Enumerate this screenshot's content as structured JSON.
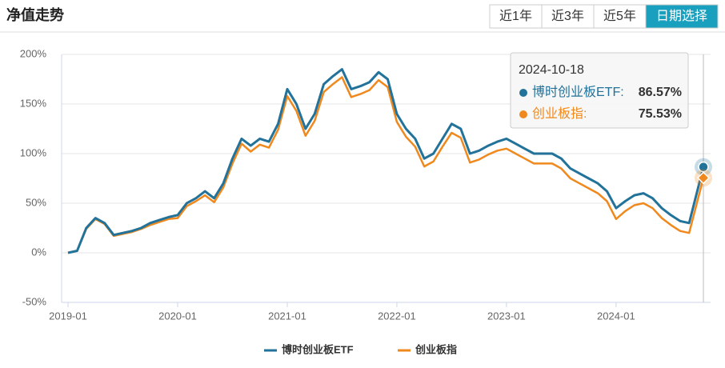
{
  "header": {
    "title": "净值走势",
    "buttons": [
      "近1年",
      "近3年",
      "近5年",
      "日期选择"
    ],
    "active": 3
  },
  "chart_data": {
    "type": "line",
    "x": [
      "2019-01",
      "2019-02",
      "2019-03",
      "2019-04",
      "2019-05",
      "2019-06",
      "2019-07",
      "2019-08",
      "2019-09",
      "2019-10",
      "2019-11",
      "2019-12",
      "2020-01",
      "2020-02",
      "2020-03",
      "2020-04",
      "2020-05",
      "2020-06",
      "2020-07",
      "2020-08",
      "2020-09",
      "2020-10",
      "2020-11",
      "2020-12",
      "2021-01",
      "2021-02",
      "2021-03",
      "2021-04",
      "2021-05",
      "2021-06",
      "2021-07",
      "2021-08",
      "2021-09",
      "2021-10",
      "2021-11",
      "2021-12",
      "2022-01",
      "2022-02",
      "2022-03",
      "2022-04",
      "2022-05",
      "2022-06",
      "2022-07",
      "2022-08",
      "2022-09",
      "2022-10",
      "2022-11",
      "2022-12",
      "2023-01",
      "2023-02",
      "2023-03",
      "2023-04",
      "2023-05",
      "2023-06",
      "2023-07",
      "2023-08",
      "2023-09",
      "2023-10",
      "2023-11",
      "2023-12",
      "2024-01",
      "2024-02",
      "2024-03",
      "2024-04",
      "2024-05",
      "2024-06",
      "2024-07",
      "2024-08",
      "2024-09",
      "2024-10-18"
    ],
    "series": [
      {
        "name": "博时创业板ETF",
        "color": "#22729a",
        "values": [
          0,
          2,
          25,
          35,
          30,
          18,
          20,
          22,
          25,
          30,
          33,
          36,
          38,
          50,
          55,
          62,
          55,
          70,
          95,
          115,
          108,
          115,
          112,
          130,
          165,
          150,
          125,
          140,
          170,
          178,
          185,
          165,
          168,
          172,
          182,
          175,
          140,
          125,
          115,
          95,
          100,
          115,
          130,
          125,
          100,
          103,
          108,
          112,
          115,
          110,
          105,
          100,
          100,
          100,
          95,
          85,
          80,
          75,
          70,
          62,
          45,
          52,
          58,
          60,
          55,
          45,
          38,
          32,
          30,
          86.57
        ]
      },
      {
        "name": "创业板指",
        "color": "#f0891d",
        "values": [
          0,
          2,
          24,
          34,
          29,
          17,
          19,
          21,
          24,
          28,
          31,
          34,
          35,
          47,
          52,
          58,
          51,
          66,
          90,
          110,
          102,
          109,
          106,
          124,
          158,
          143,
          118,
          133,
          162,
          170,
          177,
          157,
          160,
          164,
          174,
          167,
          132,
          117,
          107,
          87,
          92,
          107,
          121,
          116,
          91,
          94,
          99,
          103,
          105,
          100,
          95,
          90,
          90,
          90,
          85,
          75,
          70,
          65,
          60,
          52,
          34,
          42,
          48,
          50,
          45,
          35,
          28,
          22,
          20,
          75.53
        ]
      }
    ],
    "xticks": [
      "2019-01",
      "2020-01",
      "2021-01",
      "2022-01",
      "2023-01",
      "2024-01"
    ],
    "ylim": [
      -50,
      200
    ],
    "yticks": [
      {
        "value": -50,
        "label": "-50%"
      },
      {
        "value": 0,
        "label": "0%"
      },
      {
        "value": 50,
        "label": "50%"
      },
      {
        "value": 100,
        "label": "100%"
      },
      {
        "value": 150,
        "label": "150%"
      },
      {
        "value": 200,
        "label": "200%"
      }
    ],
    "grid": true,
    "legend": "bottom",
    "tooltip": {
      "rows": [
        {
          "name": "博时创业板ETF:",
          "label": "86.57%"
        },
        {
          "name": "创业板指:",
          "label": "75.53%"
        }
      ]
    }
  }
}
